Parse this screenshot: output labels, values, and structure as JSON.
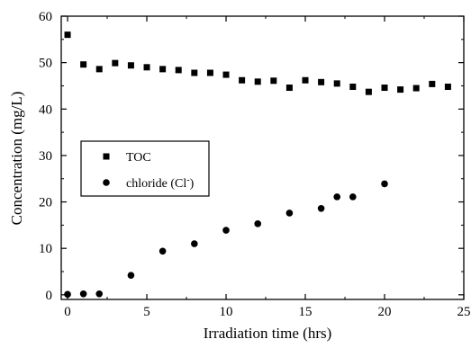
{
  "chart_data": {
    "type": "scatter",
    "xlabel": "Irradiation time (hrs)",
    "ylabel": "Concentration (mg/L)",
    "xlim": [
      -0.4,
      25
    ],
    "ylim": [
      -1,
      60
    ],
    "xticks": [
      0,
      5,
      10,
      15,
      20,
      25
    ],
    "yticks": [
      0,
      10,
      20,
      30,
      40,
      50,
      60
    ],
    "grid": false,
    "legend_position": "middle-left",
    "series": [
      {
        "name": "TOC",
        "marker": "square",
        "color": "#000000",
        "x": [
          0,
          1,
          2,
          3,
          4,
          5,
          6,
          7,
          8,
          9,
          10,
          11,
          12,
          13,
          14,
          15,
          16,
          17,
          18,
          19,
          20,
          21,
          22,
          23,
          24
        ],
        "y": [
          56.0,
          49.6,
          48.6,
          49.9,
          49.4,
          49.0,
          48.6,
          48.4,
          47.8,
          47.8,
          47.4,
          46.2,
          45.9,
          46.1,
          44.6,
          46.2,
          45.8,
          45.5,
          44.8,
          43.7,
          44.6,
          44.2,
          44.5,
          45.4,
          44.8
        ]
      },
      {
        "name": "chloride (Cl",
        "name_superscript": "-",
        "name_suffix": ")",
        "marker": "circle",
        "color": "#000000",
        "x": [
          0,
          1,
          2,
          4,
          6,
          8,
          10,
          12,
          14,
          16,
          17,
          18,
          20
        ],
        "y": [
          0.1,
          0.2,
          0.2,
          4.2,
          9.4,
          11.0,
          13.9,
          15.3,
          17.6,
          18.6,
          21.1,
          21.1,
          23.9
        ]
      }
    ]
  }
}
